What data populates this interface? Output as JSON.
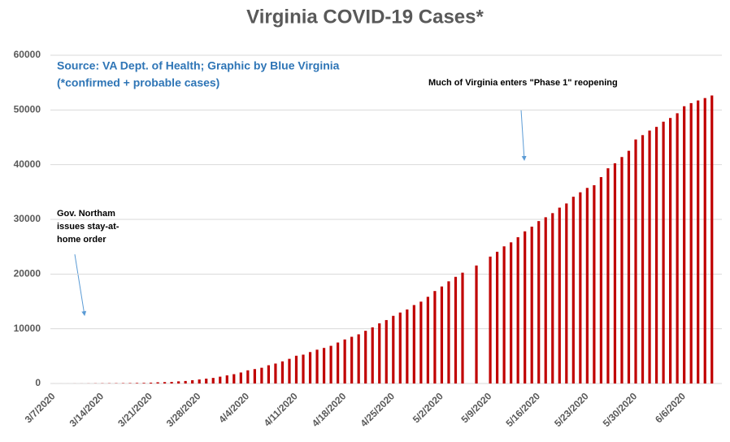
{
  "chart_data": {
    "type": "bar",
    "title": "Virginia COVID-19 Cases*",
    "annotations": {
      "source": [
        "Source: VA Dept. of Health; Graphic by Blue Virginia",
        "(*confirmed + probable cases)"
      ],
      "phase": "Much of Virginia enters \"Phase 1\" reopening",
      "stay_home": [
        "Gov. Northam",
        "issues stay-at-",
        "home order"
      ]
    },
    "categories": [
      "3/7/2020",
      null,
      null,
      null,
      null,
      null,
      null,
      "3/14/2020",
      null,
      null,
      null,
      null,
      null,
      null,
      "3/21/2020",
      null,
      null,
      null,
      null,
      null,
      null,
      "3/28/2020",
      null,
      null,
      null,
      null,
      null,
      null,
      "4/4/2020",
      null,
      null,
      null,
      null,
      null,
      null,
      "4/11/2020",
      null,
      null,
      null,
      null,
      null,
      null,
      "4/18/2020",
      null,
      null,
      null,
      null,
      null,
      null,
      "4/25/2020",
      null,
      null,
      null,
      null,
      null,
      null,
      "5/2/2020",
      null,
      null,
      null,
      null,
      null,
      null,
      "5/9/2020",
      null,
      null,
      null,
      null,
      null,
      null,
      "5/16/2020",
      null,
      null,
      null,
      null,
      null,
      null,
      "5/23/2020",
      null,
      null,
      null,
      null,
      null,
      null,
      "5/30/2020",
      null,
      null,
      null,
      null,
      null,
      null,
      "6/6/2020",
      null,
      null,
      null,
      null
    ],
    "values": [
      2,
      2,
      3,
      8,
      9,
      17,
      30,
      41,
      45,
      51,
      67,
      77,
      99,
      114,
      152,
      219,
      254,
      290,
      391,
      460,
      604,
      739,
      890,
      1020,
      1250,
      1484,
      1706,
      2012,
      2407,
      2637,
      2878,
      3333,
      3645,
      4042,
      4509,
      5077,
      5274,
      5747,
      6182,
      6500,
      6889,
      7491,
      8053,
      8537,
      8990,
      9630,
      10266,
      10998,
      11594,
      12366,
      12970,
      13535,
      14339,
      14961,
      15846,
      16901,
      17731,
      18671,
      19492,
      20256,
      null,
      21570,
      null,
      23196,
      24081,
      25070,
      25800,
      26746,
      27813,
      28672,
      29683,
      30388,
      31140,
      32145,
      32908,
      34137,
      34950,
      35749,
      36244,
      37727,
      39342,
      40249,
      41401,
      42533,
      44607,
      45398,
      46239,
      46905,
      47856,
      48532,
      49397,
      50681,
      51251,
      51738,
      52177,
      52647
    ],
    "color": "#c00000",
    "ylim": [
      0,
      60000
    ],
    "yticks": [
      0,
      10000,
      20000,
      30000,
      40000,
      50000,
      60000
    ],
    "grid": true
  }
}
